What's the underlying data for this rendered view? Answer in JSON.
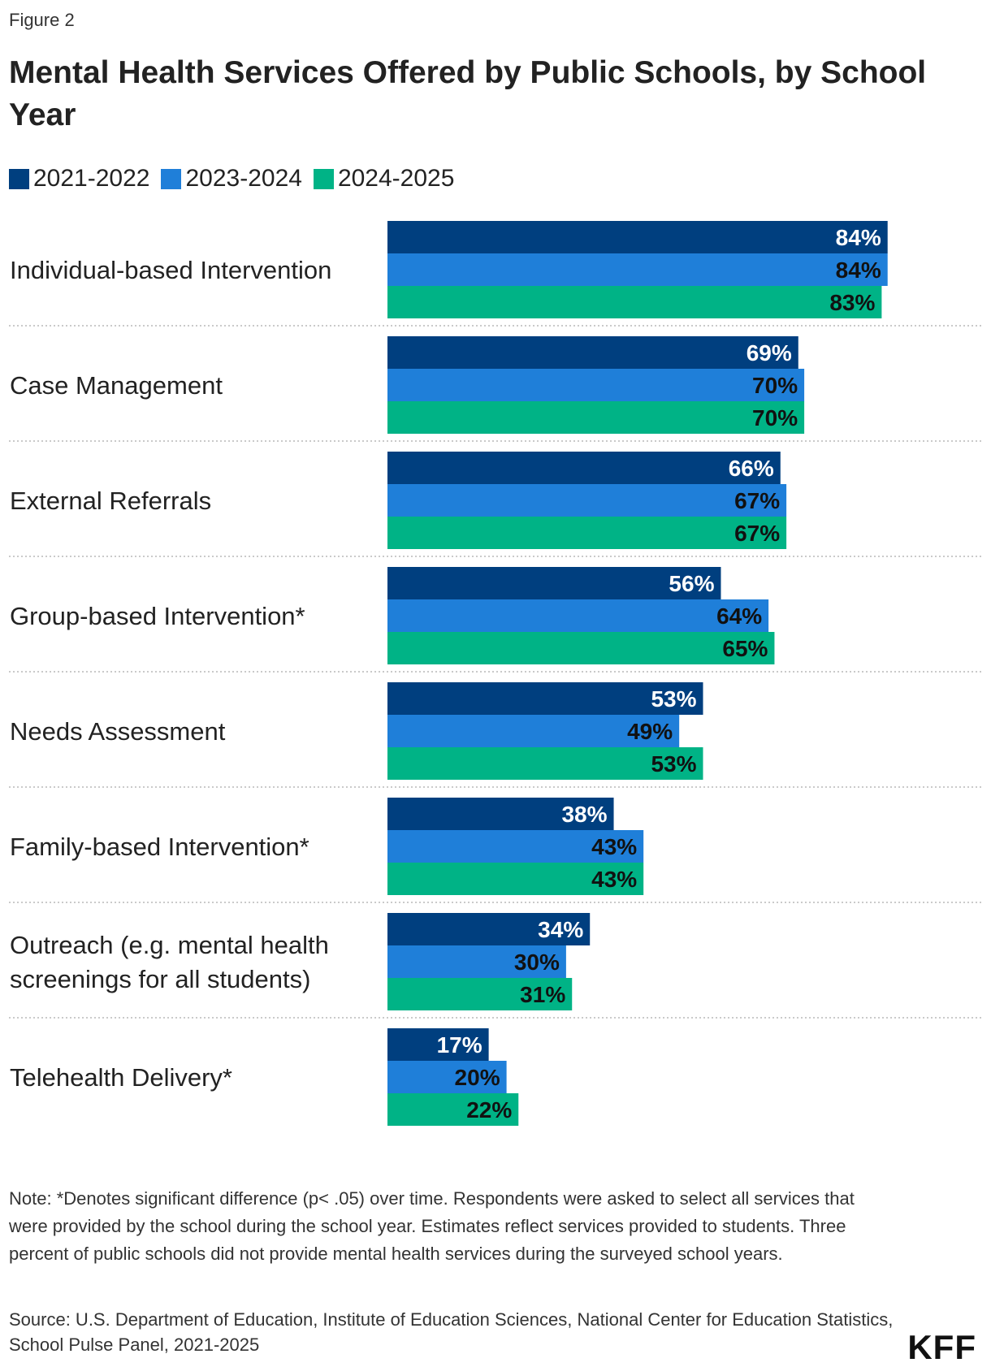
{
  "figure_label": "Figure 2",
  "note": "Note: *Denotes significant difference (p< .05) over time. Respondents were asked to select all services that were provided by the school during the school year. Estimates reflect services provided to students. Three percent of public schools did not provide mental health services during the surveyed school years.",
  "source": "Source: U.S. Department of Education, Institute of Education Sciences, National Center for Education Statistics, School Pulse Panel, 2021-2025",
  "logo_text": "KFF",
  "chart_data": {
    "type": "bar",
    "orientation": "horizontal",
    "title": "Mental Health Services Offered by Public Schools, by School Year",
    "xlabel": "",
    "ylabel": "",
    "xlim": [
      0,
      100
    ],
    "grid": false,
    "legend_position": "top-left",
    "categories": [
      [
        "Individual-based Intervention"
      ],
      [
        "Case Management"
      ],
      [
        "External Referrals"
      ],
      [
        "Group-based Intervention*"
      ],
      [
        "Needs Assessment"
      ],
      [
        "Family-based Intervention*"
      ],
      [
        "Outreach (e.g. mental health",
        "screenings for all students)"
      ],
      [
        "Telehealth Delivery*"
      ]
    ],
    "series": [
      {
        "name": "2021-2022",
        "color": "#003f7f",
        "label_color": "#ffffff",
        "values": [
          84,
          69,
          66,
          56,
          53,
          38,
          34,
          17
        ]
      },
      {
        "name": "2023-2024",
        "color": "#1f7fd9",
        "label_color": "#111111",
        "values": [
          84,
          70,
          67,
          64,
          49,
          43,
          30,
          20
        ]
      },
      {
        "name": "2024-2025",
        "color": "#00b386",
        "label_color": "#111111",
        "values": [
          83,
          70,
          67,
          65,
          53,
          43,
          31,
          22
        ]
      }
    ],
    "value_suffix": "%"
  }
}
